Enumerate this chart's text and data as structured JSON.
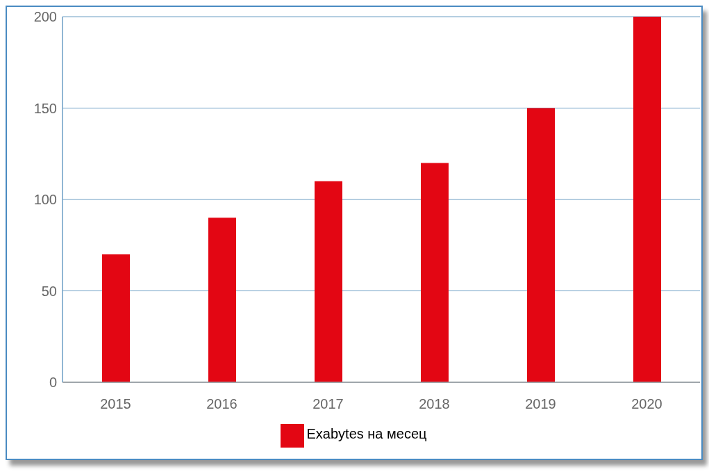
{
  "chart_data": {
    "type": "bar",
    "categories": [
      "2015",
      "2016",
      "2017",
      "2018",
      "2019",
      "2020"
    ],
    "series": [
      {
        "name": "Exabytes на месец",
        "color": "#e30613",
        "values": [
          70,
          90,
          110,
          120,
          150,
          200
        ]
      }
    ],
    "ylim": [
      0,
      200
    ],
    "yticks": [
      0,
      50,
      100,
      150,
      200
    ],
    "grid": "y",
    "legend": "bottom"
  }
}
